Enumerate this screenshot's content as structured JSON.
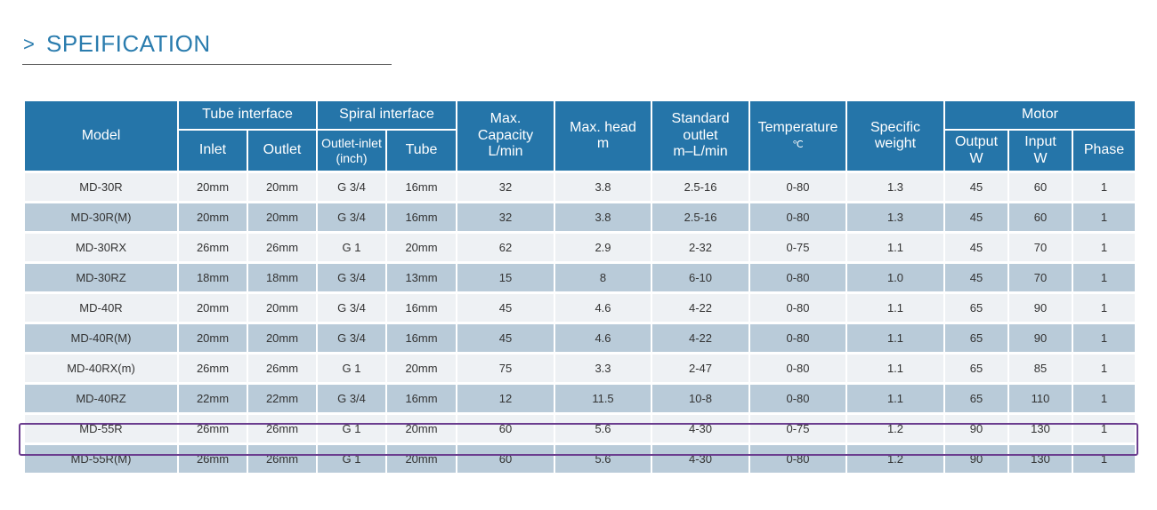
{
  "heading": {
    "chevron": ">",
    "title": "SPEIFICATION"
  },
  "table": {
    "headers": {
      "model": "Model",
      "tube_interface": "Tube interface",
      "tube_inlet": "Inlet",
      "tube_outlet": "Outlet",
      "spiral_interface": "Spiral interface",
      "spiral_outlet_inlet_line1": "Outlet-inlet",
      "spiral_outlet_inlet_line2": "(inch)",
      "spiral_tube": "Tube",
      "max_capacity_line1": "Max.",
      "max_capacity_line2": "Capacity",
      "max_capacity_line3": "L/min",
      "max_head_line1": "Max. head",
      "max_head_line2": "m",
      "standard_outlet_line1": "Standard",
      "standard_outlet_line2": "outlet",
      "standard_outlet_line3": "m–L/min",
      "temperature_line1": "Temperature",
      "temperature_line2": "℃",
      "specific_weight_line1": "Specific",
      "specific_weight_line2": "weight",
      "motor": "Motor",
      "motor_output_line1": "Output",
      "motor_output_line2": "W",
      "motor_input_line1": "Input",
      "motor_input_line2": "W",
      "motor_phase": "Phase"
    },
    "rows": [
      [
        "MD-30R",
        "20mm",
        "20mm",
        "G 3/4",
        "16mm",
        "32",
        "3.8",
        "2.5-16",
        "0-80",
        "1.3",
        "45",
        "60",
        "1"
      ],
      [
        "MD-30R(M)",
        "20mm",
        "20mm",
        "G 3/4",
        "16mm",
        "32",
        "3.8",
        "2.5-16",
        "0-80",
        "1.3",
        "45",
        "60",
        "1"
      ],
      [
        "MD-30RX",
        "26mm",
        "26mm",
        "G 1",
        "20mm",
        "62",
        "2.9",
        "2-32",
        "0-75",
        "1.1",
        "45",
        "70",
        "1"
      ],
      [
        "MD-30RZ",
        "18mm",
        "18mm",
        "G 3/4",
        "13mm",
        "15",
        "8",
        "6-10",
        "0-80",
        "1.0",
        "45",
        "70",
        "1"
      ],
      [
        "MD-40R",
        "20mm",
        "20mm",
        "G 3/4",
        "16mm",
        "45",
        "4.6",
        "4-22",
        "0-80",
        "1.1",
        "65",
        "90",
        "1"
      ],
      [
        "MD-40R(M)",
        "20mm",
        "20mm",
        "G 3/4",
        "16mm",
        "45",
        "4.6",
        "4-22",
        "0-80",
        "1.1",
        "65",
        "90",
        "1"
      ],
      [
        "MD-40RX(m)",
        "26mm",
        "26mm",
        "G 1",
        "20mm",
        "75",
        "3.3",
        "2-47",
        "0-80",
        "1.1",
        "65",
        "85",
        "1"
      ],
      [
        "MD-40RZ",
        "22mm",
        "22mm",
        "G 3/4",
        "16mm",
        "12",
        "11.5",
        "10-8",
        "0-80",
        "1.1",
        "65",
        "110",
        "1"
      ],
      [
        "MD-55R",
        "26mm",
        "26mm",
        "G 1",
        "20mm",
        "60",
        "5.6",
        "4-30",
        "0-75",
        "1.2",
        "90",
        "130",
        "1"
      ],
      [
        "MD-55R(M)",
        "26mm",
        "26mm",
        "G 1",
        "20mm",
        "60",
        "5.6",
        "4-30",
        "0-80",
        "1.2",
        "90",
        "130",
        "1"
      ]
    ],
    "highlighted_model": "MD-55R"
  },
  "colors": {
    "header_bg": "#2575a9",
    "title": "#2a7cae",
    "row_light": "#eef1f4",
    "row_dark": "#b9cbd9",
    "highlight_border": "#6b3d8f"
  }
}
